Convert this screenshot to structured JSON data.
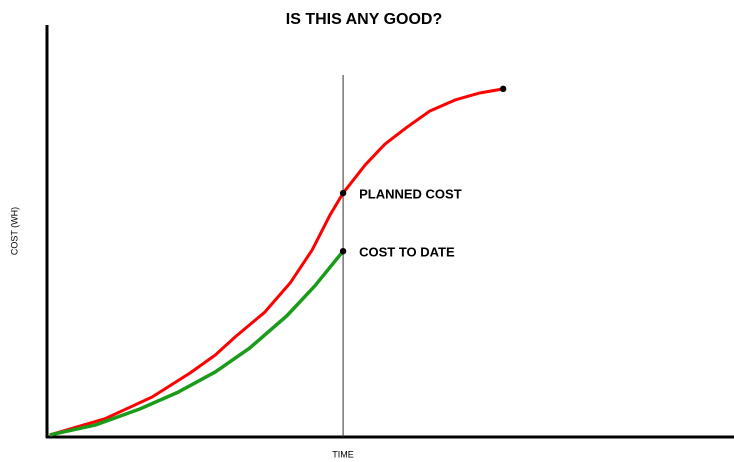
{
  "chart_data": {
    "type": "line",
    "title": "IS THIS ANY GOOD?",
    "x_label": "TIME",
    "y_label": "COST (WH)",
    "xlim": [
      0,
      100
    ],
    "ylim": [
      0,
      100
    ],
    "marker_x": 43.1,
    "series": [
      {
        "name": "PLANNED COST",
        "color": "#ff0000",
        "x": [
          0.4,
          8.4,
          15.3,
          20.8,
          24.5,
          27.4,
          31.7,
          35.4,
          38.6,
          41.2,
          43.1,
          46.3,
          49.2,
          52.4,
          55.7,
          59.4,
          63.0,
          66.4
        ],
        "values": [
          0.5,
          4.4,
          9.7,
          15.5,
          19.9,
          24.3,
          30.3,
          37.4,
          45.4,
          53.9,
          59.2,
          66.0,
          71.1,
          75.2,
          79.1,
          81.8,
          83.5,
          84.5
        ]
      },
      {
        "name": "COST TO DATE",
        "color": "#1a9c1a",
        "x": [
          0.4,
          7.0,
          13.5,
          19.1,
          24.5,
          29.5,
          34.9,
          39.0,
          43.1
        ],
        "values": [
          0.5,
          2.9,
          6.8,
          10.9,
          15.8,
          21.6,
          29.4,
          36.7,
          45.1
        ]
      }
    ]
  }
}
